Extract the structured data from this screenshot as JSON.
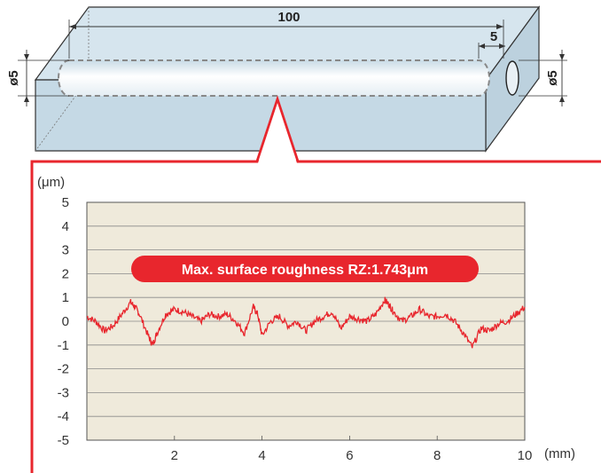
{
  "block": {
    "length_label": "100",
    "end_depth_label": "5",
    "left_diameter_label": "ø5",
    "right_diameter_label": "ø5",
    "colors": {
      "face": "#c8dbe6",
      "top": "#d6e5ee",
      "side": "#b9cfdb",
      "edge": "#333333",
      "bore": "#f4f7fa"
    }
  },
  "chart_data": {
    "type": "line",
    "title": "",
    "xlabel": "(mm)",
    "ylabel": "(μm)",
    "xlim": [
      0,
      10
    ],
    "ylim": [
      -5,
      5
    ],
    "x_ticks": [
      "2",
      "4",
      "6",
      "8",
      "10"
    ],
    "y_ticks": [
      "5",
      "4",
      "3",
      "2",
      "1",
      "0",
      "-1",
      "-2",
      "-3",
      "-4",
      "-5"
    ],
    "grid": true,
    "annotation": "Max. surface roughness RZ:1.743μm",
    "series": [
      {
        "color": "#e8262d",
        "x": [
          0.0,
          0.2,
          0.4,
          0.6,
          0.8,
          1.0,
          1.1,
          1.2,
          1.4,
          1.5,
          1.6,
          1.8,
          2.0,
          2.2,
          2.4,
          2.6,
          2.8,
          3.0,
          3.2,
          3.4,
          3.6,
          3.8,
          3.9,
          4.0,
          4.2,
          4.4,
          4.6,
          4.8,
          5.0,
          5.2,
          5.4,
          5.6,
          5.8,
          6.0,
          6.2,
          6.4,
          6.6,
          6.8,
          6.9,
          7.0,
          7.2,
          7.4,
          7.6,
          7.8,
          8.0,
          8.2,
          8.4,
          8.6,
          8.8,
          9.0,
          9.2,
          9.4,
          9.6,
          9.8,
          10.0
        ],
        "y": [
          0.2,
          0.0,
          -0.4,
          -0.2,
          0.3,
          0.8,
          0.6,
          0.3,
          -0.6,
          -1.0,
          -0.5,
          0.3,
          0.5,
          0.4,
          0.2,
          0.0,
          0.3,
          0.2,
          0.3,
          0.0,
          -0.5,
          0.6,
          0.3,
          -0.6,
          0.0,
          0.2,
          -0.2,
          0.0,
          -0.4,
          0.0,
          0.2,
          0.4,
          -0.3,
          0.2,
          0.1,
          0.0,
          0.3,
          0.9,
          0.7,
          0.4,
          0.0,
          0.2,
          0.5,
          0.2,
          0.2,
          0.3,
          0.0,
          -0.5,
          -1.1,
          -0.3,
          -0.4,
          -0.1,
          0.0,
          0.3,
          0.6
        ]
      }
    ]
  }
}
